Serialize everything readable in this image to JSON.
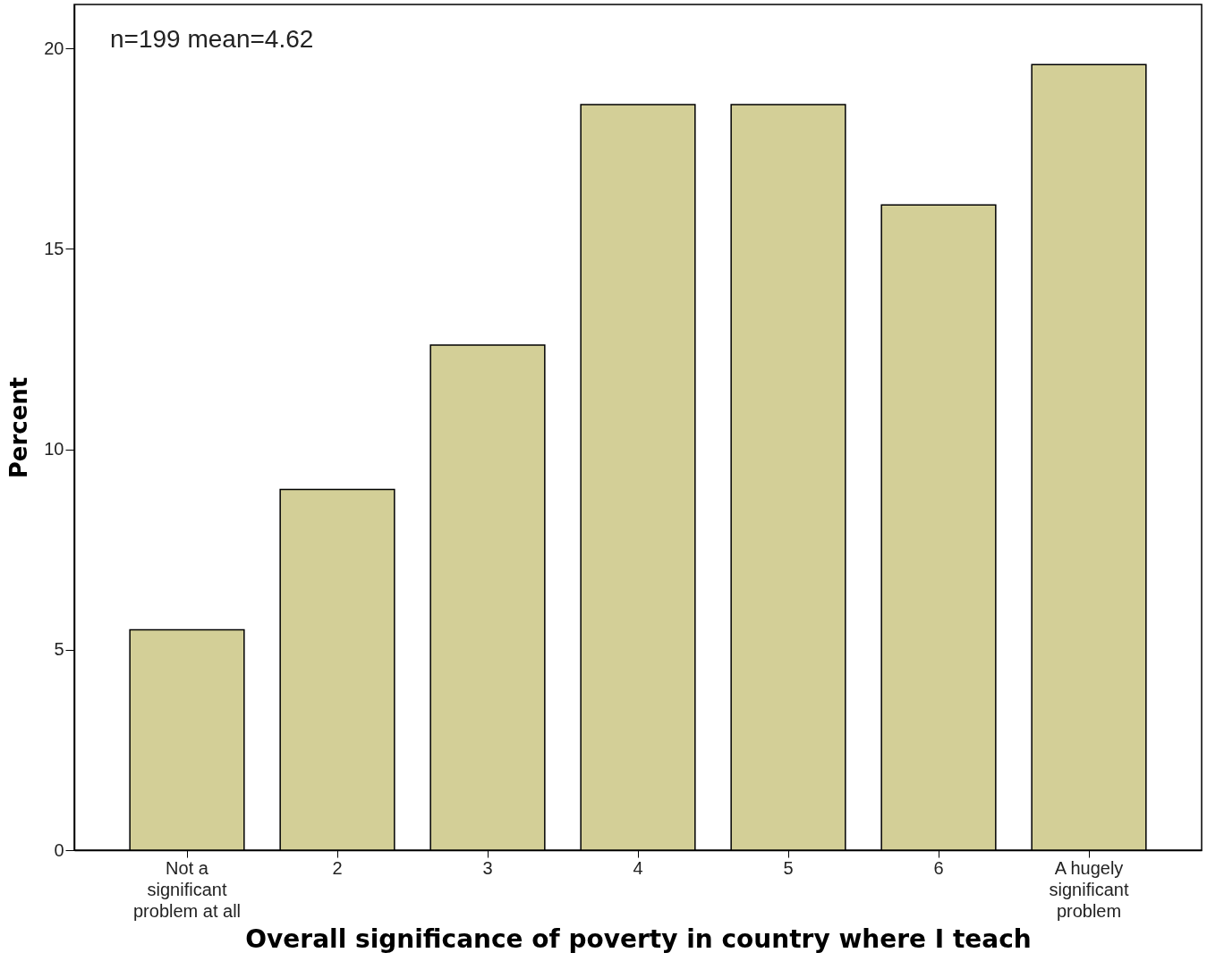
{
  "chart_data": {
    "type": "bar",
    "xlabel": "Overall significance of poverty in country where I teach",
    "ylabel": "Percent",
    "categories": [
      "Not a significant problem at all",
      "2",
      "3",
      "4",
      "5",
      "6",
      "A hugely significant problem"
    ],
    "values": [
      5.5,
      9.0,
      12.6,
      18.6,
      18.6,
      16.1,
      19.6
    ],
    "color": "#d3cf97",
    "ylim": [
      0,
      21.1
    ],
    "yticks": [
      0,
      5,
      10,
      15,
      20
    ],
    "grid": false,
    "annotations": [
      "n=199   mean=4.62"
    ]
  }
}
